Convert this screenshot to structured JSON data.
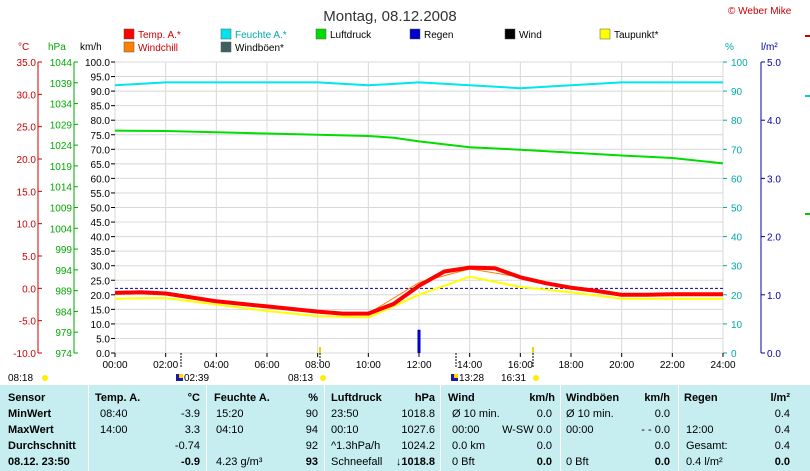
{
  "title": "Montag, 08.12.2008",
  "copyright": "© Weber Mike",
  "legend": [
    {
      "label": "Temp. A.*",
      "color": "#ff0000"
    },
    {
      "label": "Feuchte A.*",
      "color": "#00e5ee"
    },
    {
      "label": "Luftdruck",
      "color": "#00dd00"
    },
    {
      "label": "Regen",
      "color": "#0000cc"
    },
    {
      "label": "Wind",
      "color": "#000000"
    },
    {
      "label": "Taupunkt*",
      "color": "#ffff00"
    },
    {
      "label": "Windchill",
      "color": "#ff7f00"
    },
    {
      "label": "Windböen*",
      "color": "#406060"
    }
  ],
  "axis_units": {
    "temp": "°C",
    "pressure": "hPa",
    "wind": "km/h",
    "humidity": "%",
    "rain": "l/m²"
  },
  "chart_data": {
    "type": "line",
    "xlabel": "",
    "x_ticks": [
      "00:00",
      "02:00",
      "04:00",
      "06:00",
      "08:00",
      "10:00",
      "12:00",
      "14:00",
      "16:00",
      "18:00",
      "20:00",
      "22:00",
      "24:00"
    ],
    "axes": {
      "temp": {
        "range": [
          -10.0,
          35.0
        ],
        "ticks": [
          "35.0",
          "30.0",
          "25.0",
          "20.0",
          "15.0",
          "10.0",
          "5.0",
          "0.0",
          "-5.0",
          "-10.0"
        ]
      },
      "pressure": {
        "range": [
          974,
          1044
        ],
        "ticks": [
          "1044",
          "1039",
          "1034",
          "1029",
          "1024",
          "1019",
          "1014",
          "1009",
          "1004",
          "999",
          "994",
          "989",
          "984",
          "979",
          "974"
        ]
      },
      "wind": {
        "range": [
          0,
          100
        ],
        "ticks": [
          "100.0",
          "95.0",
          "90.0",
          "85.0",
          "80.0",
          "75.0",
          "70.0",
          "65.0",
          "60.0",
          "55.0",
          "50.0",
          "45.0",
          "40.0",
          "35.0",
          "30.0",
          "25.0",
          "20.0",
          "15.0",
          "10.0",
          "5.0",
          "0.0"
        ]
      },
      "humidity": {
        "range": [
          0,
          100
        ],
        "ticks": [
          "100",
          "90",
          "80",
          "70",
          "60",
          "50",
          "40",
          "30",
          "20",
          "10",
          "0"
        ]
      },
      "rain": {
        "range": [
          0.0,
          5.0
        ],
        "ticks": [
          "5.0",
          "4.0",
          "3.0",
          "2.0",
          "1.0",
          "0.0"
        ]
      }
    },
    "series": [
      {
        "name": "Temp. A.*",
        "axis": "temp",
        "color": "#ff0000",
        "x": [
          0,
          1,
          2,
          3,
          4,
          5,
          6,
          7,
          8,
          9,
          10,
          11,
          12,
          13,
          14,
          15,
          16,
          17,
          18,
          19,
          20,
          21,
          22,
          23,
          24
        ],
        "y": [
          -0.7,
          -0.6,
          -0.8,
          -1.4,
          -2.0,
          -2.4,
          -2.8,
          -3.2,
          -3.6,
          -3.9,
          -3.9,
          -2.4,
          0.4,
          2.6,
          3.2,
          3.1,
          1.7,
          0.8,
          0.1,
          -0.4,
          -1.0,
          -1.0,
          -0.9,
          -0.9,
          -0.9
        ]
      },
      {
        "name": "Feuchte A.*",
        "axis": "humidity",
        "color": "#00e5ee",
        "x": [
          0,
          2,
          4,
          6,
          8,
          10,
          12,
          14,
          16,
          18,
          20,
          22,
          24
        ],
        "y": [
          92,
          93,
          93,
          93,
          93,
          92,
          93,
          92,
          91,
          92,
          93,
          93,
          93
        ]
      },
      {
        "name": "Luftdruck",
        "axis": "pressure",
        "color": "#00dd00",
        "x": [
          0,
          2,
          4,
          6,
          8,
          10,
          11,
          12,
          14,
          16,
          18,
          20,
          22,
          24
        ],
        "y": [
          1027.5,
          1027.4,
          1027.1,
          1026.8,
          1026.5,
          1026.2,
          1025.8,
          1024.9,
          1023.5,
          1022.9,
          1022.2,
          1021.5,
          1020.9,
          1019.6
        ]
      },
      {
        "name": "Taupunkt*",
        "axis": "temp",
        "color": "#ffff00",
        "x": [
          0,
          2,
          4,
          6,
          8,
          10,
          12,
          14,
          16,
          18,
          20,
          22,
          24
        ],
        "y": [
          -1.6,
          -1.5,
          -2.5,
          -3.5,
          -4.3,
          -4.5,
          -1.0,
          1.8,
          0.2,
          -0.6,
          -1.6,
          -1.6,
          -1.6
        ]
      },
      {
        "name": "Windchill",
        "axis": "temp",
        "color": "#ff7f00",
        "x": [
          0,
          2,
          4,
          6,
          8,
          10,
          12,
          14,
          16,
          18,
          20,
          22,
          24
        ],
        "y": [
          -0.7,
          -0.8,
          -2.0,
          -2.8,
          -3.6,
          -3.9,
          0.9,
          3.0,
          1.7,
          0.1,
          -1.2,
          -0.9,
          -0.9
        ]
      },
      {
        "name": "Regen",
        "axis": "rain",
        "color": "#0000cc",
        "type": "bar",
        "x": [
          12
        ],
        "y": [
          0.4
        ]
      }
    ],
    "zero_line": {
      "axis": "temp",
      "value": 0.0
    }
  },
  "bottom_markers": {
    "left": {
      "time": "08:18"
    },
    "items": [
      {
        "time": "02:39"
      },
      {
        "time": "08:13"
      },
      {
        "time": "13:28"
      },
      {
        "time": "16:31"
      }
    ]
  },
  "stats": {
    "headers": {
      "sensor": "Sensor",
      "temp": "Temp. A.",
      "temp_unit": "°C",
      "hum": "Feuchte A.",
      "hum_unit": "%",
      "press": "Luftdruck",
      "press_unit": "hPa",
      "wind": "Wind",
      "wind_unit": "km/h",
      "gust": "Windböen",
      "gust_unit": "km/h",
      "rain": "Regen",
      "rain_unit": "l/m²"
    },
    "rows": [
      {
        "label": "MinWert",
        "temp_time": "08:40",
        "temp": "-3.9",
        "hum_time": "15:20",
        "hum": "90",
        "press_time": "23:50",
        "press": "1018.8",
        "wind_time": "Ø 10 min.",
        "wind": "0.0",
        "gust_time": "Ø 10 min.",
        "gust": "0.0",
        "rain_time": "",
        "rain": "0.4"
      },
      {
        "label": "MaxWert",
        "temp_time": "14:00",
        "temp": "3.3",
        "hum_time": "04:10",
        "hum": "94",
        "press_time": "00:10",
        "press": "1027.6",
        "wind_time": "00:00",
        "wind": "W-SW 0.0",
        "gust_time": "00:00",
        "gust": "- - 0.0",
        "rain_time": "12:00",
        "rain": "0.4"
      },
      {
        "label": "Durchschnitt",
        "temp_time": "",
        "temp": "-0.74",
        "hum_time": "",
        "hum": "92",
        "press_time": "^1.3hPa/h",
        "press": "1024.2",
        "wind_time": "0.0 km",
        "wind": "0.0",
        "gust_time": "",
        "gust": "0.0",
        "rain_time": "Gesamt:",
        "rain": "0.4"
      },
      {
        "label": "08.12. 23:50",
        "temp_time": "",
        "temp": "-0.9",
        "hum_time": "4.23 g/m³",
        "hum": "93",
        "press_time": "Schneefall",
        "press": "1018.8",
        "wind_time": "0 Bft",
        "wind": "0.0",
        "gust_time": "0 Bft",
        "gust": "0.0",
        "rain_time": "0.4 l/m²",
        "rain": "0.0"
      }
    ]
  }
}
